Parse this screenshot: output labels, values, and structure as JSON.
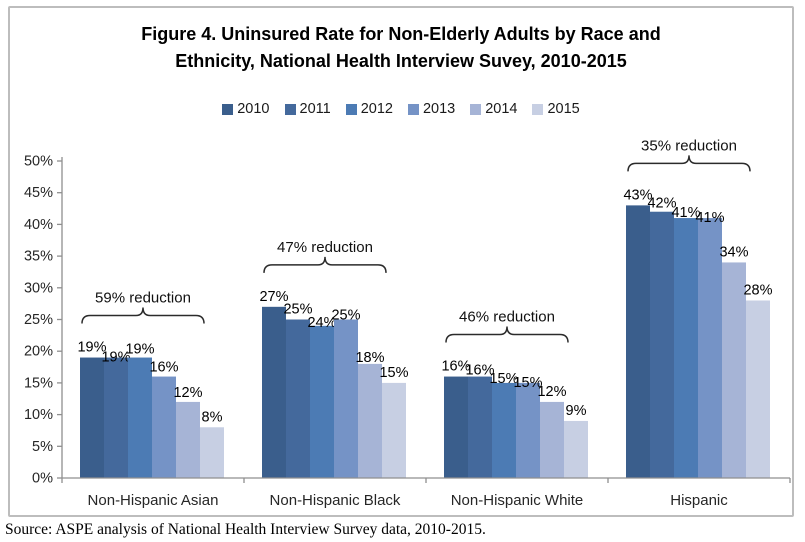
{
  "page": {
    "source_note": "Source: ASPE analysis of National Health Interview Survey data, 2010-2015."
  },
  "chart_data": {
    "type": "bar",
    "title": "Figure 4. Uninsured Rate for Non-Elderly Adults by Race and Ethnicity, National Health Interview Suvey, 2010-2015",
    "title_lines": [
      "Figure 4. Uninsured Rate for Non-Elderly Adults by Race and",
      "Ethnicity, National Health Interview Suvey, 2010-2015"
    ],
    "legend_position": "top",
    "grid": false,
    "ylim": [
      0,
      50
    ],
    "ytick_step": 5,
    "ytick_suffix": "%",
    "data_label_suffix": "%",
    "axis_color": "#8F8F8F",
    "frame_border_color": "#BDBDBD",
    "categories": [
      "Non-Hispanic Asian",
      "Non-Hispanic Black",
      "Non-Hispanic White",
      "Hispanic"
    ],
    "series": [
      {
        "name": "2010",
        "color": "#3A5E8C",
        "values": [
          19,
          27,
          16,
          43
        ]
      },
      {
        "name": "2011",
        "color": "#44699C",
        "values": [
          19,
          25,
          16,
          42
        ]
      },
      {
        "name": "2012",
        "color": "#4C7BB4",
        "values": [
          19,
          24,
          15,
          41
        ]
      },
      {
        "name": "2013",
        "color": "#7593C6",
        "values": [
          16,
          25,
          15,
          41
        ]
      },
      {
        "name": "2014",
        "color": "#A6B4D6",
        "values": [
          12,
          18,
          12,
          34
        ]
      },
      {
        "name": "2015",
        "color": "#C7CFE3",
        "values": [
          8,
          15,
          9,
          28
        ]
      }
    ],
    "annotations": [
      {
        "category": "Non-Hispanic Asian",
        "text": "59% reduction"
      },
      {
        "category": "Non-Hispanic Black",
        "text": "47% reduction"
      },
      {
        "category": "Non-Hispanic White",
        "text": "46% reduction"
      },
      {
        "category": "Hispanic",
        "text": "35% reduction"
      }
    ]
  }
}
